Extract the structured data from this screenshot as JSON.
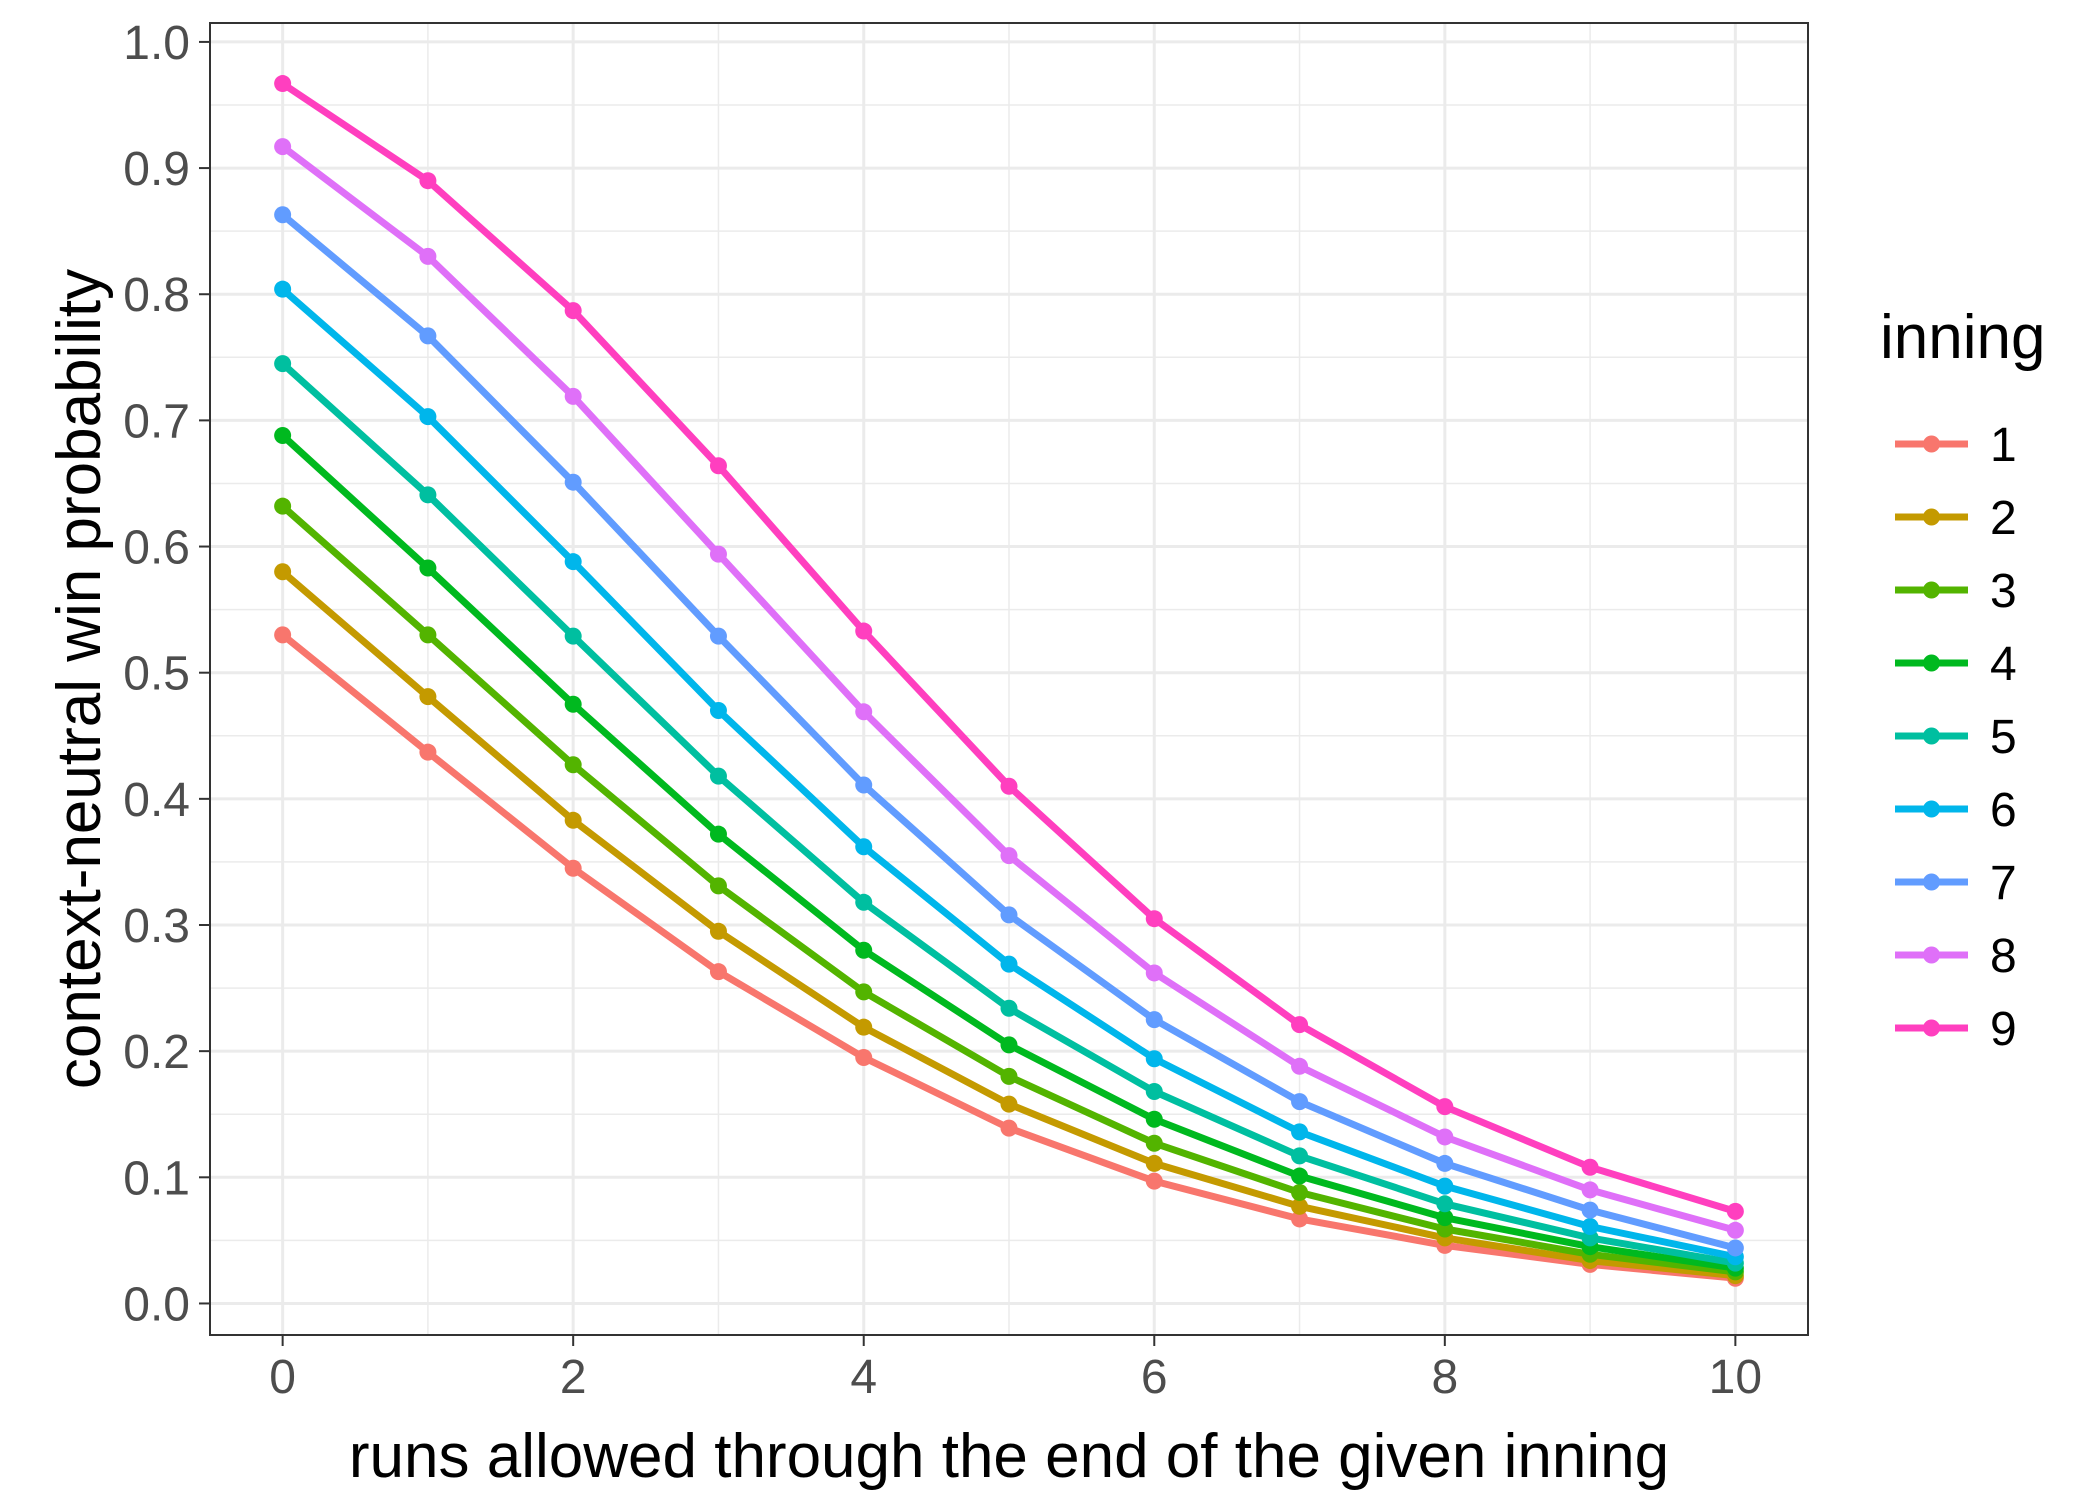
{
  "chart_data": {
    "type": "line",
    "xlabel": "runs allowed through the end of the given inning",
    "ylabel": "context-neutral win probability",
    "xlim": [
      -0.5,
      10.5
    ],
    "ylim": [
      -0.025,
      1.015
    ],
    "x_ticks": [
      0,
      2,
      4,
      6,
      8,
      10
    ],
    "y_ticks": [
      0.0,
      0.1,
      0.2,
      0.3,
      0.4,
      0.5,
      0.6,
      0.7,
      0.8,
      0.9,
      1.0
    ],
    "x_tick_labels": [
      "0",
      "2",
      "4",
      "6",
      "8",
      "10"
    ],
    "y_tick_labels": [
      "0.0",
      "0.1",
      "0.2",
      "0.3",
      "0.4",
      "0.5",
      "0.6",
      "0.7",
      "0.8",
      "0.9",
      "1.0"
    ],
    "grid": true,
    "legend": {
      "title": "inning",
      "position": "right"
    },
    "x": [
      0,
      1,
      2,
      3,
      4,
      5,
      6,
      7,
      8,
      9,
      10
    ],
    "series": [
      {
        "name": "1",
        "color": "#F8766D",
        "values": [
          0.53,
          0.437,
          0.345,
          0.263,
          0.195,
          0.139,
          0.097,
          0.067,
          0.046,
          0.031,
          0.02
        ]
      },
      {
        "name": "2",
        "color": "#C49A00",
        "values": [
          0.58,
          0.481,
          0.383,
          0.295,
          0.219,
          0.158,
          0.111,
          0.077,
          0.052,
          0.034,
          0.022
        ]
      },
      {
        "name": "3",
        "color": "#53B400",
        "values": [
          0.632,
          0.53,
          0.427,
          0.331,
          0.247,
          0.18,
          0.127,
          0.088,
          0.059,
          0.039,
          0.025
        ]
      },
      {
        "name": "4",
        "color": "#00B91F",
        "values": [
          0.688,
          0.583,
          0.475,
          0.372,
          0.28,
          0.205,
          0.146,
          0.101,
          0.068,
          0.045,
          0.028
        ]
      },
      {
        "name": "5",
        "color": "#00BFA0",
        "values": [
          0.745,
          0.641,
          0.529,
          0.418,
          0.318,
          0.234,
          0.168,
          0.117,
          0.079,
          0.052,
          0.032
        ]
      },
      {
        "name": "6",
        "color": "#00B6EB",
        "values": [
          0.804,
          0.703,
          0.588,
          0.47,
          0.362,
          0.269,
          0.194,
          0.136,
          0.093,
          0.061,
          0.037
        ]
      },
      {
        "name": "7",
        "color": "#619CFF",
        "values": [
          0.863,
          0.767,
          0.651,
          0.529,
          0.411,
          0.308,
          0.225,
          0.16,
          0.111,
          0.074,
          0.044
        ]
      },
      {
        "name": "8",
        "color": "#DF70F8",
        "values": [
          0.917,
          0.83,
          0.719,
          0.594,
          0.469,
          0.355,
          0.262,
          0.188,
          0.132,
          0.09,
          0.058
        ]
      },
      {
        "name": "9",
        "color": "#FF3FBF",
        "values": [
          0.967,
          0.89,
          0.787,
          0.664,
          0.533,
          0.41,
          0.305,
          0.221,
          0.156,
          0.108,
          0.073
        ]
      }
    ]
  }
}
